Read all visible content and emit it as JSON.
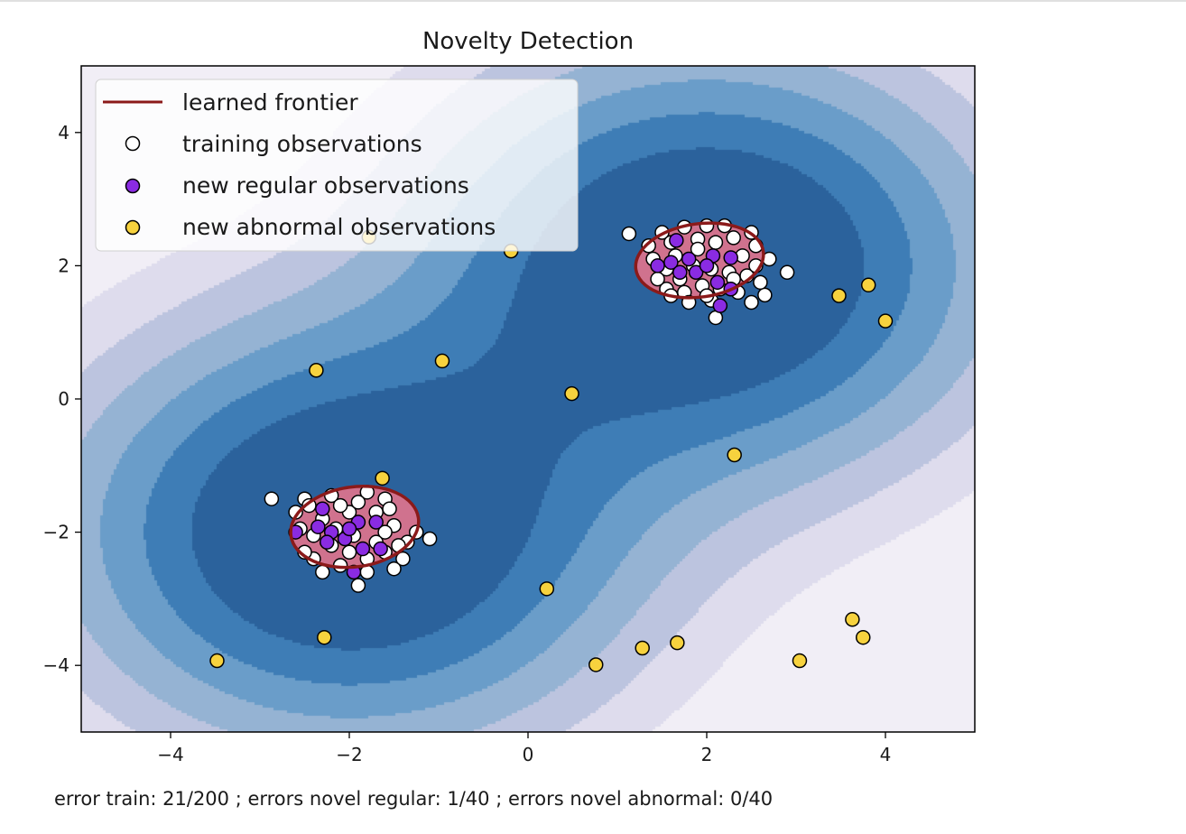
{
  "chart_data": {
    "type": "scatter",
    "title": "Novelty Detection",
    "xlabel": "error train: 21/200 ; errors novel regular: 1/40 ; errors novel abnormal: 0/40",
    "ylabel": "",
    "xlim": [
      -5,
      5
    ],
    "ylim": [
      -5,
      5
    ],
    "xticks": [
      -4,
      -2,
      0,
      2,
      4
    ],
    "yticks": [
      -4,
      -2,
      0,
      2,
      4
    ],
    "xtick_labels": [
      "−4",
      "−2",
      "0",
      "2",
      "4"
    ],
    "ytick_labels": [
      "−4",
      "−2",
      "0",
      "2",
      "4"
    ],
    "legend": {
      "placement": "top-left",
      "entries": [
        "learned frontier",
        "training observations",
        "new regular observations",
        "new abnormal observations"
      ]
    },
    "colors": {
      "frontier": "#8b1a1a",
      "frontier_fill": "#d0728e",
      "training": "#ffffff",
      "regular": "#8a2be2",
      "abnormal": "#f7d23e",
      "contour_levels": [
        "#f1eef6",
        "#dedced",
        "#bcc4df",
        "#95b3d3",
        "#6a9dc9",
        "#3e7db6",
        "#2b629c"
      ]
    },
    "frontier": [
      {
        "cx": 1.92,
        "cy": 2.08,
        "rx": 0.72,
        "ry": 0.55,
        "angle": -8
      },
      {
        "cx": -1.94,
        "cy": -1.92,
        "rx": 0.72,
        "ry": 0.6,
        "angle": -8
      }
    ],
    "series": [
      {
        "name": "training observations",
        "points": [
          [
            1.13,
            2.48
          ],
          [
            1.5,
            2.5
          ],
          [
            1.75,
            2.58
          ],
          [
            2.0,
            2.6
          ],
          [
            2.2,
            2.6
          ],
          [
            2.5,
            2.5
          ],
          [
            1.35,
            2.3
          ],
          [
            1.6,
            2.35
          ],
          [
            1.9,
            2.4
          ],
          [
            2.3,
            2.42
          ],
          [
            2.55,
            2.3
          ],
          [
            2.7,
            2.1
          ],
          [
            2.9,
            1.9
          ],
          [
            2.65,
            1.56
          ],
          [
            1.4,
            2.1
          ],
          [
            1.55,
            1.95
          ],
          [
            1.7,
            1.8
          ],
          [
            1.85,
            2.0
          ],
          [
            2.05,
            1.95
          ],
          [
            2.25,
            1.9
          ],
          [
            2.45,
            1.85
          ],
          [
            2.6,
            1.75
          ],
          [
            1.55,
            1.65
          ],
          [
            1.75,
            1.6
          ],
          [
            1.95,
            1.7
          ],
          [
            2.15,
            1.65
          ],
          [
            2.35,
            1.6
          ],
          [
            2.5,
            1.45
          ],
          [
            1.8,
            1.45
          ],
          [
            2.05,
            1.48
          ],
          [
            2.1,
            1.22
          ],
          [
            2.3,
            1.8
          ],
          [
            1.65,
            2.15
          ],
          [
            2.4,
            2.15
          ],
          [
            1.9,
            2.25
          ],
          [
            2.1,
            2.35
          ],
          [
            1.45,
            1.8
          ],
          [
            2.55,
            2.0
          ],
          [
            2.0,
            1.55
          ],
          [
            1.6,
            1.55
          ],
          [
            -2.87,
            -1.5
          ],
          [
            -2.5,
            -1.5
          ],
          [
            -2.6,
            -1.7
          ],
          [
            -2.2,
            -1.45
          ],
          [
            -1.8,
            -1.4
          ],
          [
            -1.6,
            -1.5
          ],
          [
            -1.1,
            -2.1
          ],
          [
            -1.4,
            -2.4
          ],
          [
            -1.9,
            -2.8
          ],
          [
            -2.4,
            -2.4
          ],
          [
            -2.5,
            -2.3
          ],
          [
            -2.3,
            -1.8
          ],
          [
            -2.0,
            -1.7
          ],
          [
            -1.7,
            -1.7
          ],
          [
            -1.5,
            -1.9
          ],
          [
            -1.35,
            -2.15
          ],
          [
            -2.4,
            -2.05
          ],
          [
            -2.2,
            -2.2
          ],
          [
            -2.0,
            -2.3
          ],
          [
            -1.8,
            -2.4
          ],
          [
            -1.6,
            -2.3
          ],
          [
            -1.5,
            -2.55
          ],
          [
            -2.1,
            -2.5
          ],
          [
            -1.8,
            -2.6
          ],
          [
            -2.3,
            -2.6
          ],
          [
            -1.6,
            -2.0
          ],
          [
            -1.95,
            -2.05
          ],
          [
            -2.15,
            -1.95
          ],
          [
            -1.7,
            -2.15
          ],
          [
            -2.55,
            -1.95
          ],
          [
            -1.45,
            -2.2
          ],
          [
            -1.9,
            -1.55
          ],
          [
            -2.1,
            -1.6
          ],
          [
            -1.55,
            -1.65
          ],
          [
            -1.25,
            -2.0
          ],
          [
            -2.45,
            -1.6
          ]
        ]
      },
      {
        "name": "new regular observations",
        "points": [
          [
            1.66,
            2.38
          ],
          [
            1.6,
            2.05
          ],
          [
            1.45,
            2.0
          ],
          [
            1.8,
            2.1
          ],
          [
            1.88,
            1.9
          ],
          [
            2.07,
            2.15
          ],
          [
            2.27,
            2.12
          ],
          [
            2.12,
            1.75
          ],
          [
            2.27,
            1.65
          ],
          [
            1.7,
            1.9
          ],
          [
            2.0,
            2.0
          ],
          [
            2.15,
            1.4
          ],
          [
            -2.3,
            -1.65
          ],
          [
            -2.6,
            -2.0
          ],
          [
            -2.35,
            -1.92
          ],
          [
            -2.2,
            -2.0
          ],
          [
            -2.25,
            -2.15
          ],
          [
            -2.05,
            -2.1
          ],
          [
            -1.9,
            -1.85
          ],
          [
            -1.7,
            -1.85
          ],
          [
            -1.85,
            -2.25
          ],
          [
            -1.65,
            -2.25
          ],
          [
            -2.0,
            -1.95
          ],
          [
            -1.95,
            -2.6
          ]
        ]
      },
      {
        "name": "new abnormal observations",
        "points": [
          [
            -1.78,
            2.43
          ],
          [
            -0.19,
            2.22
          ],
          [
            -2.37,
            0.43
          ],
          [
            -0.96,
            0.57
          ],
          [
            0.49,
            0.08
          ],
          [
            3.48,
            1.55
          ],
          [
            3.81,
            1.71
          ],
          [
            4.0,
            1.17
          ],
          [
            2.31,
            -0.84
          ],
          [
            -1.63,
            -1.19
          ],
          [
            0.21,
            -2.85
          ],
          [
            -2.28,
            -3.58
          ],
          [
            -3.48,
            -3.93
          ],
          [
            0.76,
            -3.99
          ],
          [
            1.28,
            -3.74
          ],
          [
            1.67,
            -3.66
          ],
          [
            3.04,
            -3.93
          ],
          [
            3.63,
            -3.31
          ],
          [
            3.75,
            -3.58
          ]
        ]
      }
    ]
  }
}
